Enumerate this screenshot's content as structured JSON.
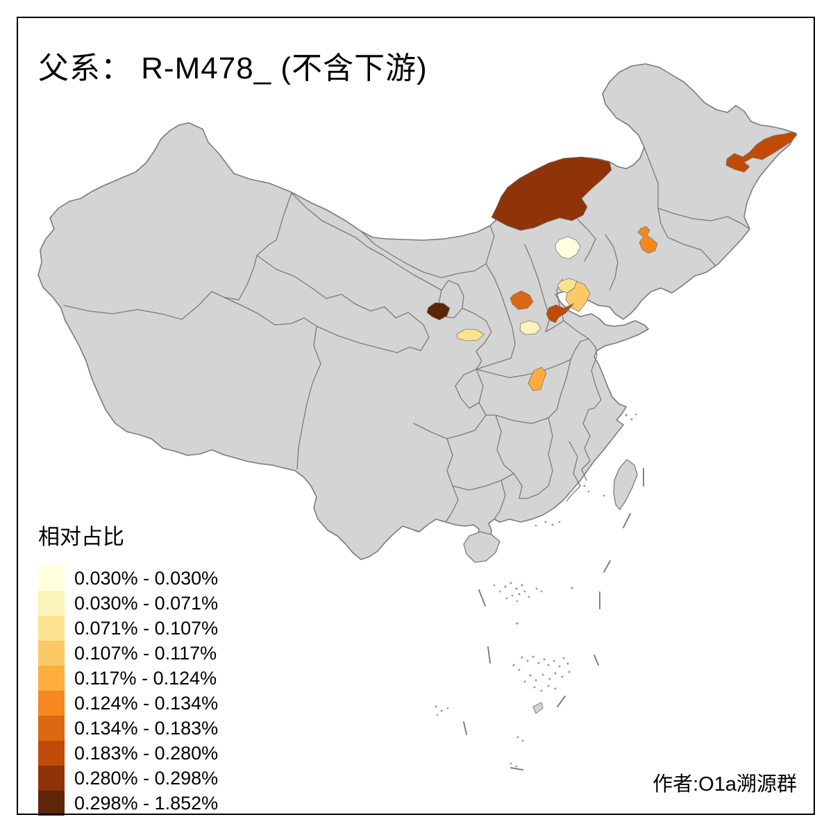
{
  "title": "父系： R-M478_ (不含下游)",
  "author": "作者:O1a溯源群",
  "legend": {
    "title": "相对占比",
    "classes": [
      {
        "label": "0.030% - 0.030%",
        "color": "#FFFFDF"
      },
      {
        "label": "0.030% - 0.071%",
        "color": "#FAF3BA"
      },
      {
        "label": "0.071% - 0.107%",
        "color": "#FDE28F"
      },
      {
        "label": "0.107% - 0.117%",
        "color": "#FCC966"
      },
      {
        "label": "0.117% - 0.124%",
        "color": "#FCAD3E"
      },
      {
        "label": "0.124% - 0.134%",
        "color": "#F5871F"
      },
      {
        "label": "0.134% - 0.183%",
        "color": "#DC6711"
      },
      {
        "label": "0.183% - 0.280%",
        "color": "#C14A06"
      },
      {
        "label": "0.280% - 0.298%",
        "color": "#8F3309"
      },
      {
        "label": "0.298% - 1.852%",
        "color": "#5E2508"
      }
    ]
  },
  "map": {
    "base_fill": "#D4D4D4",
    "border_color": "#7A7A7A",
    "sea_color": "#FFFFFF",
    "regions": [
      {
        "name": "inner-mongolia-central",
        "class_index": 8,
        "value_range": "0.280% - 0.298%"
      },
      {
        "name": "heilongjiang-northeast",
        "class_index": 7,
        "value_range": "0.183% - 0.280%"
      },
      {
        "name": "beijing",
        "class_index": 0,
        "value_range": "0.030% - 0.030%"
      },
      {
        "name": "liaoning-central",
        "class_index": 5,
        "value_range": "0.124% - 0.134%"
      },
      {
        "name": "shandong-northwest",
        "class_index": 2,
        "value_range": "0.071% - 0.107%"
      },
      {
        "name": "shandong-southwest",
        "class_index": 3,
        "value_range": "0.107% - 0.117%"
      },
      {
        "name": "henan-north",
        "class_index": 6,
        "value_range": "0.134% - 0.183%"
      },
      {
        "name": "henan-central",
        "class_index": 7,
        "value_range": "0.183% - 0.280%"
      },
      {
        "name": "hebei-south",
        "class_index": 1,
        "value_range": "0.030% - 0.071%"
      },
      {
        "name": "gansu-east",
        "class_index": 2,
        "value_range": "0.071% - 0.107%"
      },
      {
        "name": "gansu-lanzhou",
        "class_index": 9,
        "value_range": "0.298% - 1.852%"
      },
      {
        "name": "hubei-north",
        "class_index": 4,
        "value_range": "0.117% - 0.124%"
      }
    ]
  }
}
